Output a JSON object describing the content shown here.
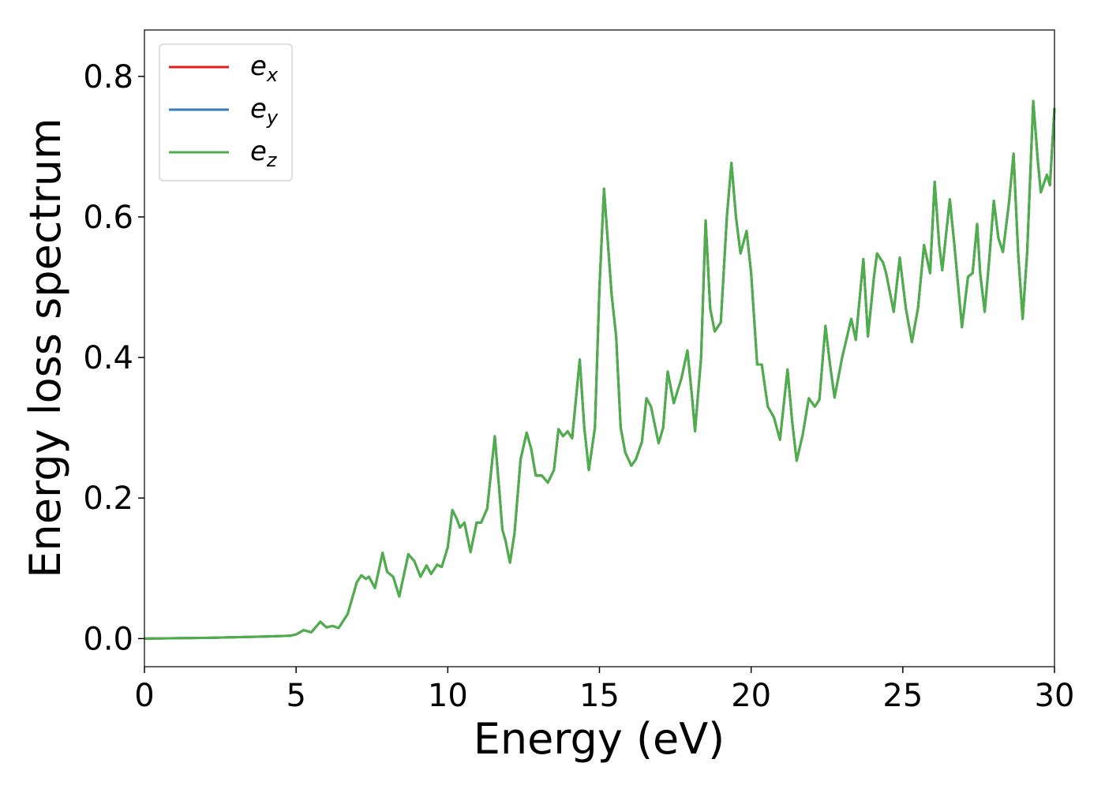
{
  "chart_data": {
    "type": "line",
    "xlabel": "Energy (eV)",
    "ylabel": "Energy loss spectrum",
    "xlim": [
      0,
      30
    ],
    "ylim": [
      -0.04,
      0.866
    ],
    "xticks": [
      0,
      5,
      10,
      15,
      20,
      25,
      30
    ],
    "yticks": [
      {
        "value": 0,
        "label": "0.0"
      },
      0.2,
      0.4,
      0.6,
      0.8
    ],
    "legend": "upper left",
    "x": [
      0,
      2,
      4,
      4.8,
      5.0,
      5.25,
      5.5,
      5.8,
      6.0,
      6.2,
      6.4,
      6.7,
      7.0,
      7.15,
      7.3,
      7.4,
      7.6,
      7.85,
      8.0,
      8.2,
      8.4,
      8.7,
      8.9,
      9.1,
      9.3,
      9.45,
      9.65,
      9.8,
      10.0,
      10.15,
      10.3,
      10.4,
      10.55,
      10.75,
      10.95,
      11.1,
      11.3,
      11.55,
      11.7,
      11.8,
      11.9,
      12.05,
      12.2,
      12.4,
      12.6,
      12.75,
      12.9,
      13.1,
      13.3,
      13.5,
      13.65,
      13.8,
      13.95,
      14.1,
      14.35,
      14.5,
      14.65,
      14.85,
      15.0,
      15.15,
      15.3,
      15.4,
      15.55,
      15.7,
      15.85,
      16.05,
      16.2,
      16.4,
      16.55,
      16.7,
      16.95,
      17.1,
      17.25,
      17.45,
      17.7,
      17.9,
      18.05,
      18.15,
      18.35,
      18.5,
      18.65,
      18.8,
      19.0,
      19.2,
      19.35,
      19.5,
      19.65,
      19.85,
      20.0,
      20.2,
      20.35,
      20.55,
      20.75,
      20.95,
      21.2,
      21.35,
      21.5,
      21.7,
      21.9,
      22.1,
      22.25,
      22.45,
      22.6,
      22.75,
      23.0,
      23.3,
      23.45,
      23.7,
      23.85,
      24.05,
      24.15,
      24.35,
      24.45,
      24.7,
      24.9,
      25.1,
      25.3,
      25.5,
      25.7,
      25.9,
      26.05,
      26.2,
      26.3,
      26.55,
      26.7,
      26.95,
      27.15,
      27.3,
      27.45,
      27.55,
      27.7,
      27.85,
      28.0,
      28.15,
      28.3,
      28.5,
      28.65,
      28.8,
      28.95,
      29.1,
      29.3,
      29.45,
      29.55,
      29.75,
      29.85,
      30.0
    ],
    "series": [
      {
        "name": "ex",
        "color": "#e41a1c",
        "values": [
          0,
          0.001,
          0.003,
          0.004,
          0.006,
          0.012,
          0.009,
          0.024,
          0.016,
          0.018,
          0.015,
          0.035,
          0.08,
          0.09,
          0.085,
          0.088,
          0.072,
          0.122,
          0.095,
          0.088,
          0.06,
          0.12,
          0.11,
          0.088,
          0.104,
          0.092,
          0.105,
          0.102,
          0.13,
          0.183,
          0.17,
          0.158,
          0.165,
          0.123,
          0.165,
          0.165,
          0.185,
          0.288,
          0.21,
          0.155,
          0.14,
          0.108,
          0.15,
          0.255,
          0.293,
          0.27,
          0.232,
          0.232,
          0.222,
          0.24,
          0.298,
          0.288,
          0.295,
          0.285,
          0.397,
          0.3,
          0.24,
          0.3,
          0.5,
          0.64,
          0.55,
          0.49,
          0.43,
          0.3,
          0.265,
          0.246,
          0.255,
          0.28,
          0.342,
          0.33,
          0.278,
          0.3,
          0.38,
          0.335,
          0.37,
          0.41,
          0.345,
          0.295,
          0.4,
          0.595,
          0.47,
          0.437,
          0.45,
          0.6,
          0.677,
          0.6,
          0.548,
          0.58,
          0.52,
          0.39,
          0.39,
          0.33,
          0.315,
          0.283,
          0.383,
          0.31,
          0.253,
          0.29,
          0.342,
          0.33,
          0.34,
          0.445,
          0.39,
          0.343,
          0.4,
          0.455,
          0.425,
          0.54,
          0.43,
          0.515,
          0.548,
          0.535,
          0.52,
          0.465,
          0.542,
          0.47,
          0.422,
          0.47,
          0.56,
          0.52,
          0.65,
          0.56,
          0.524,
          0.625,
          0.56,
          0.443,
          0.515,
          0.52,
          0.59,
          0.52,
          0.465,
          0.54,
          0.623,
          0.57,
          0.55,
          0.62,
          0.69,
          0.55,
          0.455,
          0.55,
          0.765,
          0.68,
          0.635,
          0.66,
          0.645,
          0.755
        ]
      },
      {
        "name": "ey",
        "color": "#377eb8",
        "values": [
          0,
          0.001,
          0.003,
          0.004,
          0.006,
          0.012,
          0.009,
          0.024,
          0.016,
          0.018,
          0.015,
          0.035,
          0.08,
          0.09,
          0.085,
          0.088,
          0.072,
          0.122,
          0.095,
          0.088,
          0.06,
          0.12,
          0.11,
          0.088,
          0.104,
          0.092,
          0.105,
          0.102,
          0.13,
          0.183,
          0.17,
          0.158,
          0.165,
          0.123,
          0.165,
          0.165,
          0.185,
          0.288,
          0.21,
          0.155,
          0.14,
          0.108,
          0.15,
          0.255,
          0.293,
          0.27,
          0.232,
          0.232,
          0.222,
          0.24,
          0.298,
          0.288,
          0.295,
          0.285,
          0.397,
          0.3,
          0.24,
          0.3,
          0.5,
          0.64,
          0.55,
          0.49,
          0.43,
          0.3,
          0.265,
          0.246,
          0.255,
          0.28,
          0.342,
          0.33,
          0.278,
          0.3,
          0.38,
          0.335,
          0.37,
          0.41,
          0.345,
          0.295,
          0.4,
          0.595,
          0.47,
          0.437,
          0.45,
          0.6,
          0.677,
          0.6,
          0.548,
          0.58,
          0.52,
          0.39,
          0.39,
          0.33,
          0.315,
          0.283,
          0.383,
          0.31,
          0.253,
          0.29,
          0.342,
          0.33,
          0.34,
          0.445,
          0.39,
          0.343,
          0.4,
          0.455,
          0.425,
          0.54,
          0.43,
          0.515,
          0.548,
          0.535,
          0.52,
          0.465,
          0.542,
          0.47,
          0.422,
          0.47,
          0.56,
          0.52,
          0.65,
          0.56,
          0.524,
          0.625,
          0.56,
          0.443,
          0.515,
          0.52,
          0.59,
          0.52,
          0.465,
          0.54,
          0.623,
          0.57,
          0.55,
          0.62,
          0.69,
          0.55,
          0.455,
          0.55,
          0.765,
          0.68,
          0.635,
          0.66,
          0.645,
          0.755
        ]
      },
      {
        "name": "ez",
        "color": "#4daf4a",
        "values": [
          0,
          0.001,
          0.003,
          0.004,
          0.006,
          0.012,
          0.009,
          0.024,
          0.016,
          0.018,
          0.015,
          0.035,
          0.08,
          0.09,
          0.085,
          0.088,
          0.072,
          0.122,
          0.095,
          0.088,
          0.06,
          0.12,
          0.11,
          0.088,
          0.104,
          0.092,
          0.105,
          0.102,
          0.13,
          0.183,
          0.17,
          0.158,
          0.165,
          0.123,
          0.165,
          0.165,
          0.185,
          0.288,
          0.21,
          0.155,
          0.14,
          0.108,
          0.15,
          0.255,
          0.293,
          0.27,
          0.232,
          0.232,
          0.222,
          0.24,
          0.298,
          0.288,
          0.295,
          0.285,
          0.397,
          0.3,
          0.24,
          0.3,
          0.5,
          0.64,
          0.55,
          0.49,
          0.43,
          0.3,
          0.265,
          0.246,
          0.255,
          0.28,
          0.342,
          0.33,
          0.278,
          0.3,
          0.38,
          0.335,
          0.37,
          0.41,
          0.345,
          0.295,
          0.4,
          0.595,
          0.47,
          0.437,
          0.45,
          0.6,
          0.677,
          0.6,
          0.548,
          0.58,
          0.52,
          0.39,
          0.39,
          0.33,
          0.315,
          0.283,
          0.383,
          0.31,
          0.253,
          0.29,
          0.342,
          0.33,
          0.34,
          0.445,
          0.39,
          0.343,
          0.4,
          0.455,
          0.425,
          0.54,
          0.43,
          0.515,
          0.548,
          0.535,
          0.52,
          0.465,
          0.542,
          0.47,
          0.422,
          0.47,
          0.56,
          0.52,
          0.65,
          0.56,
          0.524,
          0.625,
          0.56,
          0.443,
          0.515,
          0.52,
          0.59,
          0.52,
          0.465,
          0.54,
          0.623,
          0.57,
          0.55,
          0.62,
          0.69,
          0.55,
          0.455,
          0.55,
          0.765,
          0.68,
          0.635,
          0.66,
          0.645,
          0.755
        ]
      }
    ]
  }
}
